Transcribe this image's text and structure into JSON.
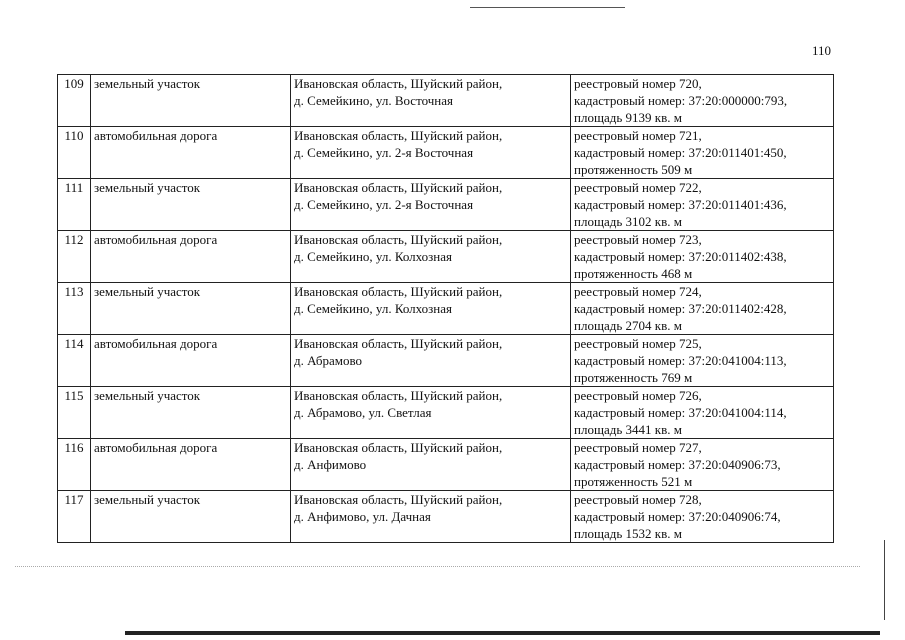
{
  "page_number": "110",
  "rows": [
    {
      "num": "109",
      "type": "земельный участок",
      "addr": [
        "Ивановская область, Шуйский район,",
        "д. Семейкино, ул. Восточная"
      ],
      "info": [
        "реестровый номер 720,",
        "кадастровый номер: 37:20:000000:793,",
        "площадь 9139 кв. м"
      ]
    },
    {
      "num": "110",
      "type": "автомобильная дорога",
      "addr": [
        "Ивановская область, Шуйский район,",
        "д. Семейкино, ул. 2-я Восточная"
      ],
      "info": [
        "реестровый номер 721,",
        "кадастровый номер: 37:20:011401:450,",
        "протяженность 509 м"
      ]
    },
    {
      "num": "111",
      "type": "земельный участок",
      "addr": [
        "Ивановская область, Шуйский район,",
        "д. Семейкино, ул. 2-я Восточная"
      ],
      "info": [
        "реестровый номер 722,",
        "кадастровый номер: 37:20:011401:436,",
        "площадь 3102 кв. м"
      ]
    },
    {
      "num": "112",
      "type": "автомобильная дорога",
      "addr": [
        "Ивановская область, Шуйский район,",
        "д. Семейкино, ул. Колхозная"
      ],
      "info": [
        "реестровый номер 723,",
        "кадастровый номер: 37:20:011402:438,",
        "протяженность 468 м"
      ]
    },
    {
      "num": "113",
      "type": "земельный участок",
      "addr": [
        "Ивановская область, Шуйский район,",
        "д. Семейкино, ул. Колхозная"
      ],
      "info": [
        "реестровый номер 724,",
        "кадастровый номер: 37:20:011402:428,",
        "площадь 2704 кв. м"
      ]
    },
    {
      "num": "114",
      "type": "автомобильная дорога",
      "addr": [
        "Ивановская область, Шуйский район,",
        "д. Абрамово"
      ],
      "info": [
        "реестровый номер 725,",
        "кадастровый номер: 37:20:041004:113,",
        "протяженность 769 м"
      ]
    },
    {
      "num": "115",
      "type": "земельный участок",
      "addr": [
        "Ивановская область, Шуйский район,",
        "д. Абрамово, ул. Светлая"
      ],
      "info": [
        "реестровый номер 726,",
        "кадастровый номер: 37:20:041004:114,",
        "площадь 3441 кв. м"
      ]
    },
    {
      "num": "116",
      "type": "автомобильная дорога",
      "addr": [
        "Ивановская область, Шуйский район,",
        "д. Анфимово"
      ],
      "info": [
        "реестровый номер 727,",
        "кадастровый номер: 37:20:040906:73,",
        "протяженность 521 м"
      ]
    },
    {
      "num": "117",
      "type": "земельный участок",
      "addr": [
        "Ивановская область, Шуйский район,",
        "д. Анфимово, ул. Дачная"
      ],
      "info": [
        "реестровый номер 728,",
        "кадастровый номер: 37:20:040906:74,",
        "площадь 1532 кв. м"
      ]
    }
  ]
}
